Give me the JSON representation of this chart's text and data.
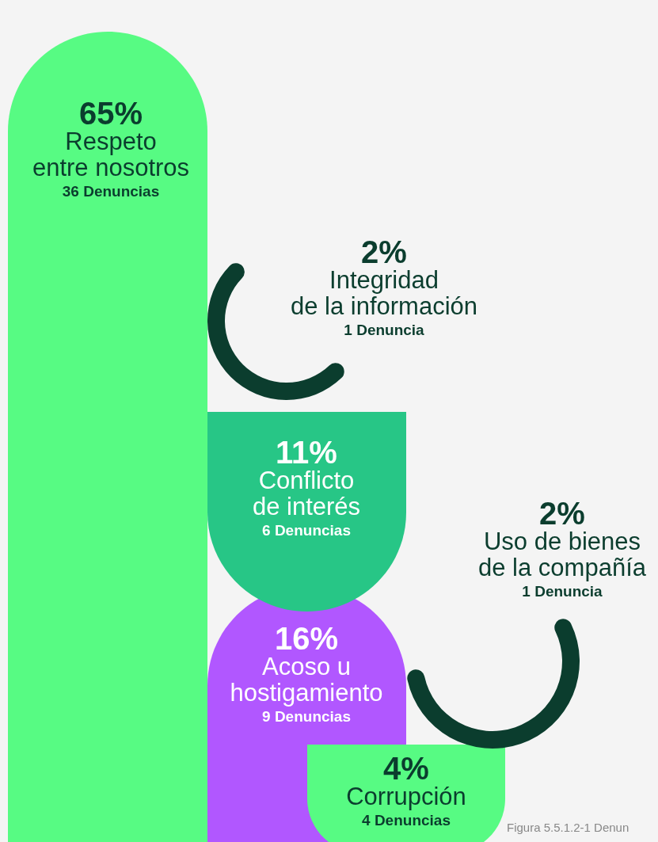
{
  "chart_data": {
    "type": "other",
    "categories": [
      "Respeto\nentre nosotros",
      "Integridad\nde la información",
      "Conflicto\nde interés",
      "Uso de bienes\nde la compañía",
      "Acoso u\nhostigamiento",
      "Corrupción"
    ],
    "series": [
      {
        "values": [
          65,
          2,
          11,
          2,
          16,
          4
        ],
        "value_labels": [
          "65%",
          "2%",
          "11%",
          "2%",
          "16%",
          "4%"
        ],
        "colors": [
          "#57fb83",
          "#0b3d2e",
          "#27c686",
          "#0b3d2e",
          "#b157ff",
          "#57fb83"
        ]
      },
      {
        "values": [
          36,
          1,
          6,
          1,
          9,
          4
        ],
        "value_labels": [
          "36 Denuncias",
          "1 Denuncia",
          "6 Denuncias",
          "1 Denuncia",
          "9 Denuncias",
          "4 Denuncias"
        ]
      }
    ],
    "annotations": [
      "Figura 5.5.1.2-1 Denun"
    ]
  }
}
